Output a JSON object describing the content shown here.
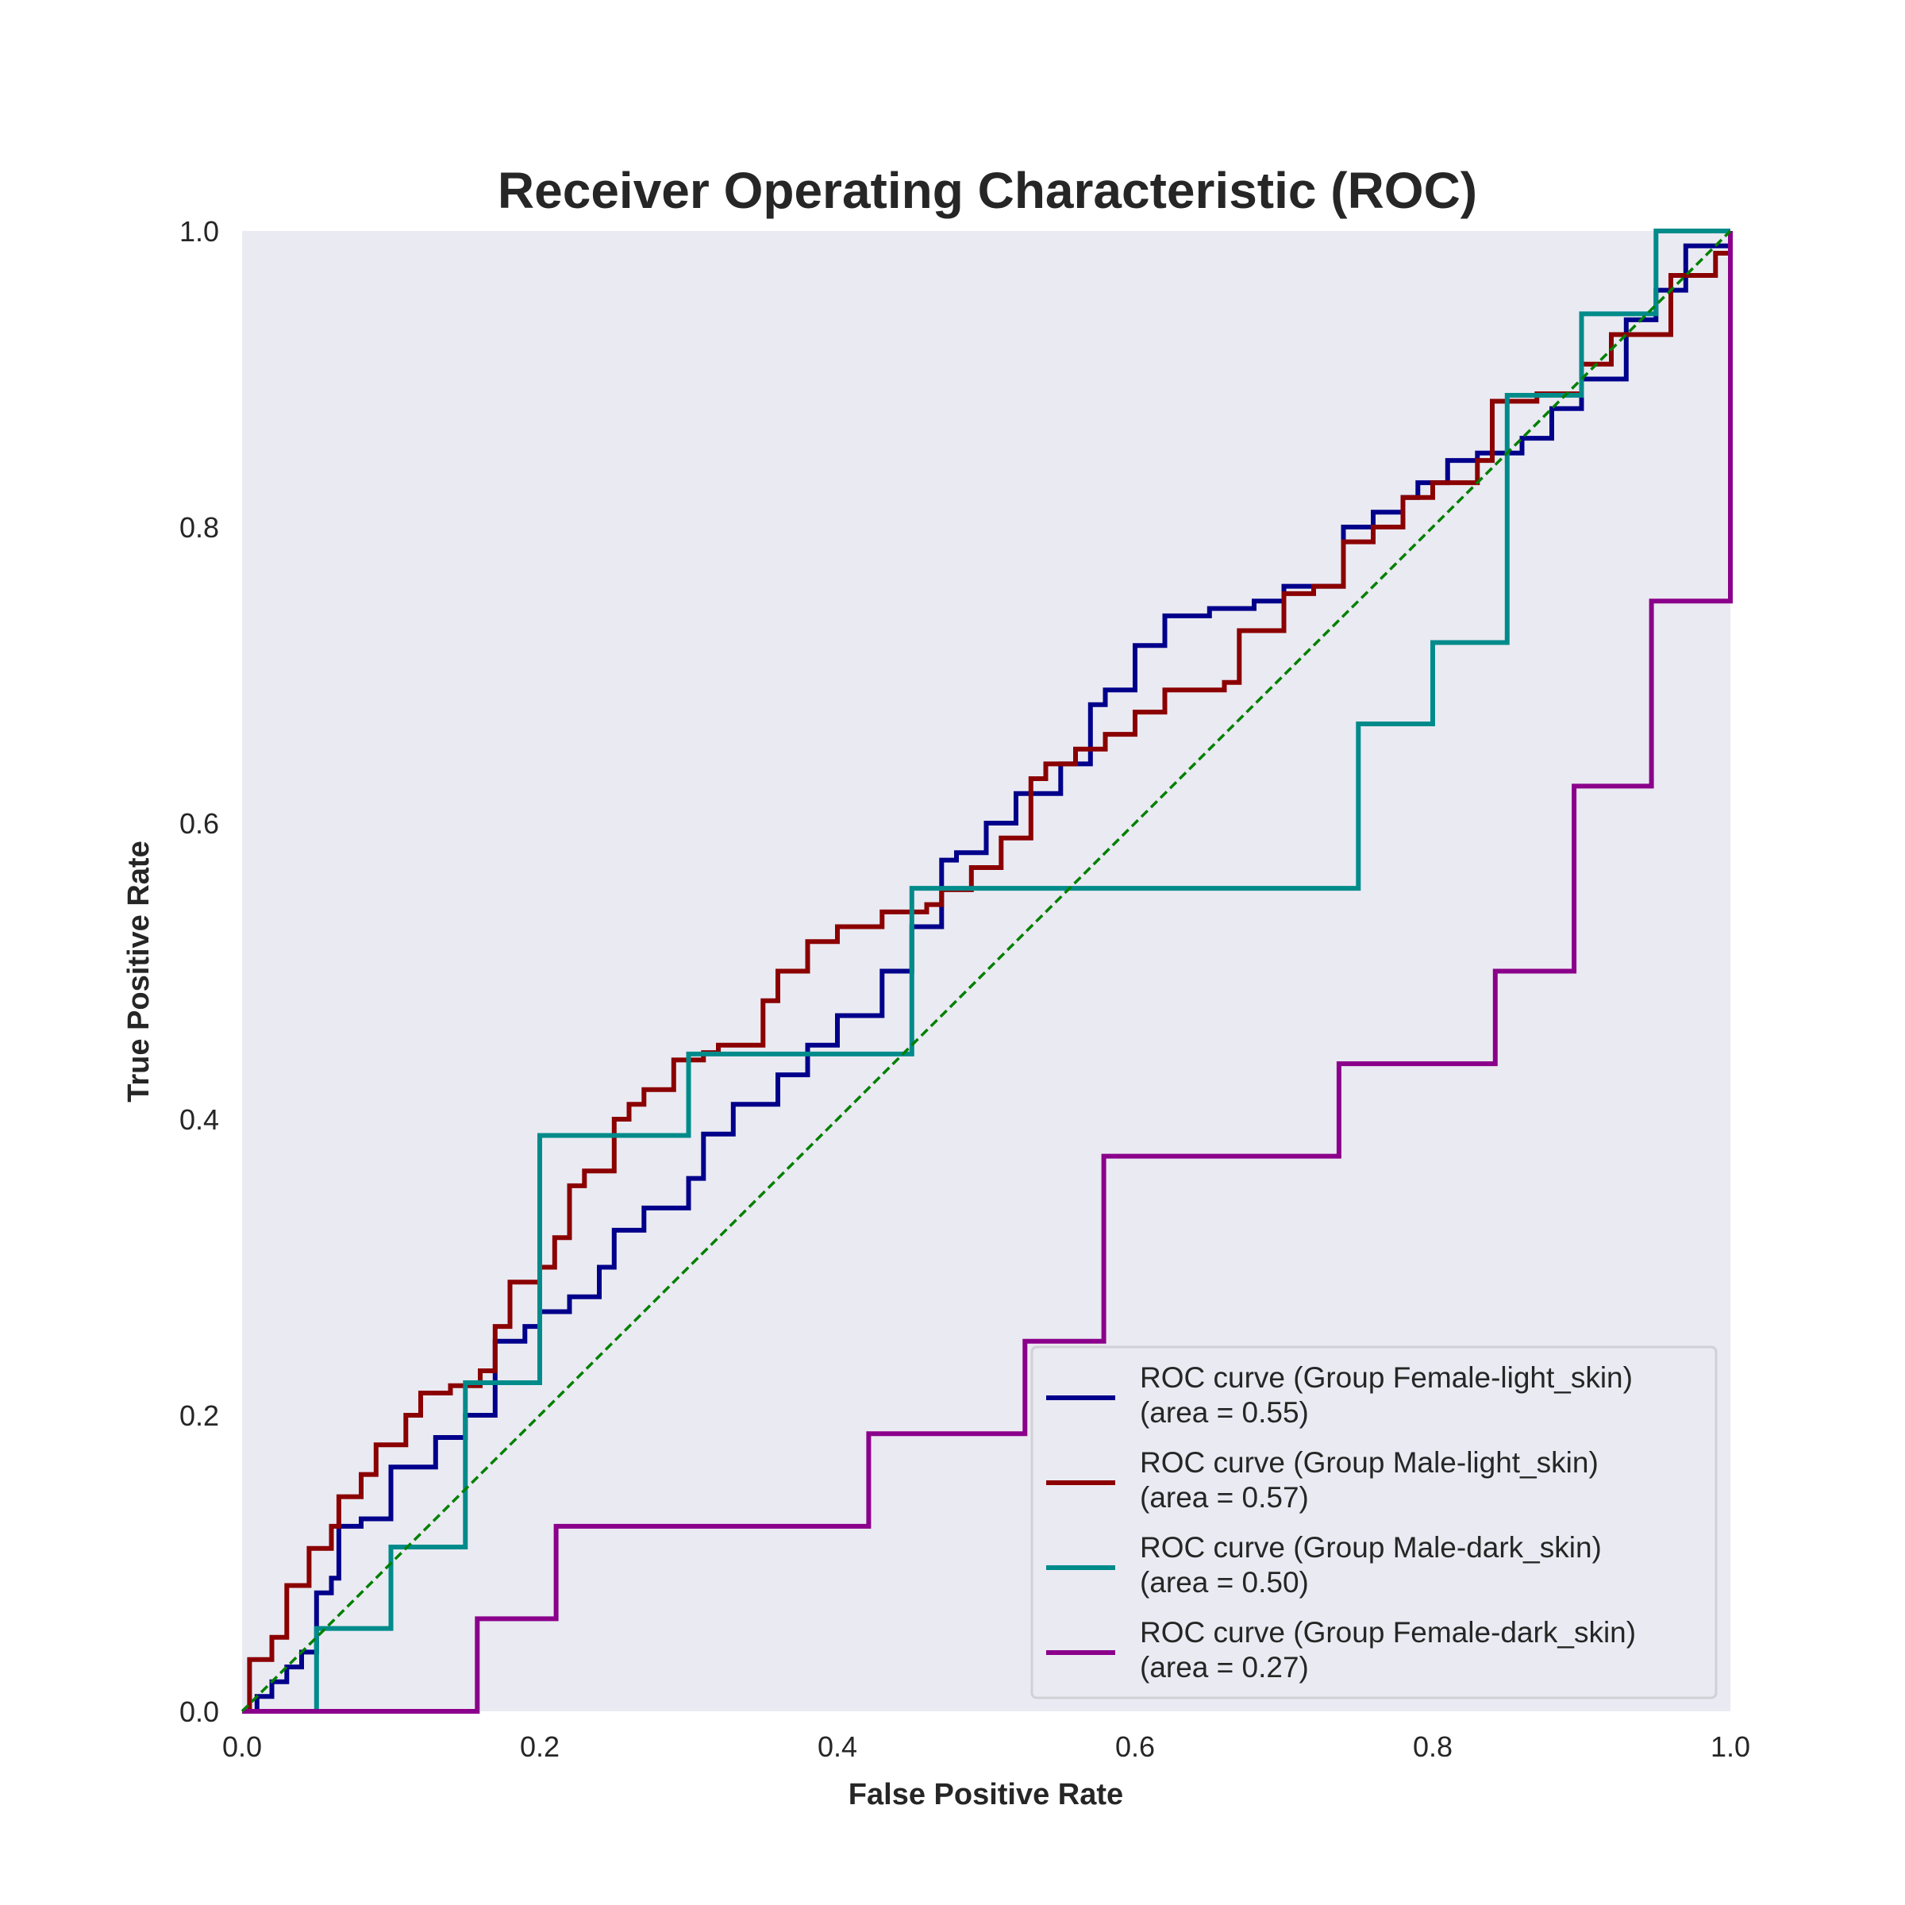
{
  "chart_data": {
    "type": "line",
    "title": "Receiver Operating Characteristic (ROC)",
    "xlabel": "False Positive Rate",
    "ylabel": "True Positive Rate",
    "xlim": [
      0.0,
      1.0
    ],
    "ylim": [
      0.0,
      1.0
    ],
    "xticks": [
      "0.0",
      "0.2",
      "0.4",
      "0.6",
      "0.8",
      "1.0"
    ],
    "yticks": [
      "0.0",
      "0.2",
      "0.4",
      "0.6",
      "0.8",
      "1.0"
    ],
    "grid": false,
    "legend_position": "lower right",
    "background_color": "#eaeaf2",
    "series": [
      {
        "name": "ROC curve (Group Female-light_skin)",
        "area_label": "(area = 0.55)",
        "color": "#00008b",
        "step": true,
        "x": [
          0.0,
          0.01,
          0.02,
          0.03,
          0.04,
          0.05,
          0.06,
          0.065,
          0.08,
          0.1,
          0.13,
          0.15,
          0.17,
          0.19,
          0.2,
          0.22,
          0.24,
          0.25,
          0.27,
          0.3,
          0.31,
          0.33,
          0.36,
          0.38,
          0.4,
          0.43,
          0.45,
          0.47,
          0.48,
          0.5,
          0.52,
          0.55,
          0.57,
          0.58,
          0.6,
          0.62,
          0.65,
          0.68,
          0.7,
          0.72,
          0.74,
          0.76,
          0.78,
          0.79,
          0.81,
          0.83,
          0.86,
          0.88,
          0.9,
          0.93,
          0.95,
          0.97,
          1.0
        ],
        "y": [
          0.0,
          0.01,
          0.02,
          0.03,
          0.04,
          0.08,
          0.09,
          0.125,
          0.13,
          0.165,
          0.185,
          0.2,
          0.25,
          0.26,
          0.27,
          0.28,
          0.3,
          0.325,
          0.34,
          0.36,
          0.39,
          0.41,
          0.43,
          0.45,
          0.47,
          0.5,
          0.53,
          0.575,
          0.58,
          0.6,
          0.62,
          0.64,
          0.68,
          0.69,
          0.72,
          0.74,
          0.745,
          0.75,
          0.76,
          0.76,
          0.8,
          0.81,
          0.82,
          0.83,
          0.845,
          0.85,
          0.86,
          0.88,
          0.9,
          0.94,
          0.96,
          0.99,
          1.0
        ]
      },
      {
        "name": "ROC curve (Group Male-light_skin)",
        "area_label": "(area = 0.57)",
        "color": "#8b0000",
        "step": true,
        "x": [
          0.0,
          0.005,
          0.02,
          0.03,
          0.045,
          0.06,
          0.065,
          0.08,
          0.09,
          0.11,
          0.12,
          0.14,
          0.16,
          0.17,
          0.18,
          0.2,
          0.21,
          0.22,
          0.23,
          0.25,
          0.26,
          0.27,
          0.29,
          0.31,
          0.32,
          0.35,
          0.36,
          0.38,
          0.4,
          0.43,
          0.46,
          0.47,
          0.49,
          0.51,
          0.53,
          0.54,
          0.56,
          0.58,
          0.6,
          0.62,
          0.66,
          0.67,
          0.7,
          0.72,
          0.74,
          0.76,
          0.78,
          0.8,
          0.83,
          0.84,
          0.87,
          0.9,
          0.92,
          0.96,
          0.99,
          1.0
        ],
        "y": [
          0.0,
          0.035,
          0.05,
          0.085,
          0.11,
          0.125,
          0.145,
          0.16,
          0.18,
          0.2,
          0.215,
          0.22,
          0.23,
          0.26,
          0.29,
          0.3,
          0.32,
          0.355,
          0.365,
          0.4,
          0.41,
          0.42,
          0.44,
          0.445,
          0.45,
          0.48,
          0.5,
          0.52,
          0.53,
          0.54,
          0.545,
          0.555,
          0.57,
          0.59,
          0.63,
          0.64,
          0.65,
          0.66,
          0.675,
          0.69,
          0.695,
          0.73,
          0.755,
          0.76,
          0.79,
          0.8,
          0.82,
          0.83,
          0.845,
          0.885,
          0.89,
          0.91,
          0.93,
          0.97,
          0.985,
          1.0
        ]
      },
      {
        "name": "ROC curve (Group Male-dark_skin)",
        "area_label": "(area = 0.50)",
        "color": "#008b8b",
        "step": true,
        "x": [
          0.0,
          0.05,
          0.05,
          0.1,
          0.1,
          0.15,
          0.15,
          0.2,
          0.2,
          0.3,
          0.3,
          0.45,
          0.45,
          0.75,
          0.75,
          0.8,
          0.8,
          0.85,
          0.85,
          0.9,
          0.9,
          0.95,
          0.95,
          1.0
        ],
        "y": [
          0.0,
          0.0,
          0.056,
          0.056,
          0.111,
          0.111,
          0.222,
          0.222,
          0.389,
          0.389,
          0.444,
          0.444,
          0.556,
          0.556,
          0.667,
          0.667,
          0.722,
          0.722,
          0.889,
          0.889,
          0.944,
          0.944,
          1.0,
          1.0
        ]
      },
      {
        "name": "ROC curve (Group Female-dark_skin)",
        "area_label": "(area = 0.27)",
        "color": "#8b008b",
        "step": true,
        "x": [
          0.0,
          0.158,
          0.158,
          0.211,
          0.211,
          0.421,
          0.421,
          0.526,
          0.526,
          0.579,
          0.579,
          0.737,
          0.737,
          0.842,
          0.842,
          0.895,
          0.895,
          0.947,
          0.947,
          1.0,
          1.0
        ],
        "y": [
          0.0,
          0.0,
          0.0625,
          0.0625,
          0.125,
          0.125,
          0.1875,
          0.1875,
          0.25,
          0.25,
          0.375,
          0.375,
          0.4375,
          0.4375,
          0.5,
          0.5,
          0.625,
          0.625,
          0.75,
          0.75,
          1.0
        ]
      }
    ],
    "reference_line": {
      "x": [
        0.0,
        1.0
      ],
      "y": [
        0.0,
        1.0
      ],
      "color": "#008000",
      "style": "dashed"
    }
  }
}
